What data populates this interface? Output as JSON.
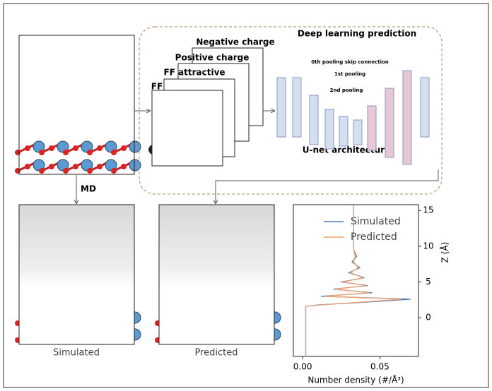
{
  "figure": {
    "top_panel": {
      "dl_title": "Deep learning prediction",
      "neg": "Negative charge",
      "pos": "Positive charge",
      "ffa": "FF attractive",
      "ff": "FF",
      "skip0": "0th pooling skip connection",
      "pool1": "1st pooling",
      "pool2": "2nd pooling",
      "unet": "U-net architecture"
    },
    "md": "MD",
    "sim_label": "Simulated",
    "pred_label": "Predicted"
  },
  "chart_data": {
    "type": "line",
    "ylabel": "Z (Å)",
    "xlabel": "Number density (#/Å³)",
    "z": [
      -5.4,
      1.6,
      1.8,
      2.3,
      2.6,
      3.0,
      3.5,
      4.0,
      4.5,
      5.0,
      5.6,
      6.3,
      7.0,
      7.8,
      8.6,
      9.5,
      11,
      13,
      15.8
    ],
    "series": [
      {
        "name": "Simulated",
        "color": "#4a7fb5",
        "values": [
          0.002,
          0.002,
          0.01,
          0.05,
          0.07,
          0.012,
          0.045,
          0.02,
          0.042,
          0.025,
          0.04,
          0.03,
          0.037,
          0.032,
          0.035,
          0.033,
          0.033,
          0.033,
          0.033
        ]
      },
      {
        "name": "Predicted",
        "color": "#f0a070",
        "values": [
          0.002,
          0.002,
          0.012,
          0.045,
          0.064,
          0.014,
          0.043,
          0.021,
          0.041,
          0.026,
          0.039,
          0.031,
          0.036,
          0.033,
          0.034,
          0.033,
          0.033,
          0.033,
          0.033
        ]
      }
    ],
    "xlim": [
      -0.006,
      0.075
    ],
    "ylim": [
      -5.4,
      15.8
    ],
    "xticks": [
      {
        "value": 0,
        "label": "0.00"
      },
      {
        "value": 0.05,
        "label": "0.05"
      }
    ],
    "yticks": [
      0,
      5,
      10,
      15
    ],
    "legend": "upper right"
  }
}
